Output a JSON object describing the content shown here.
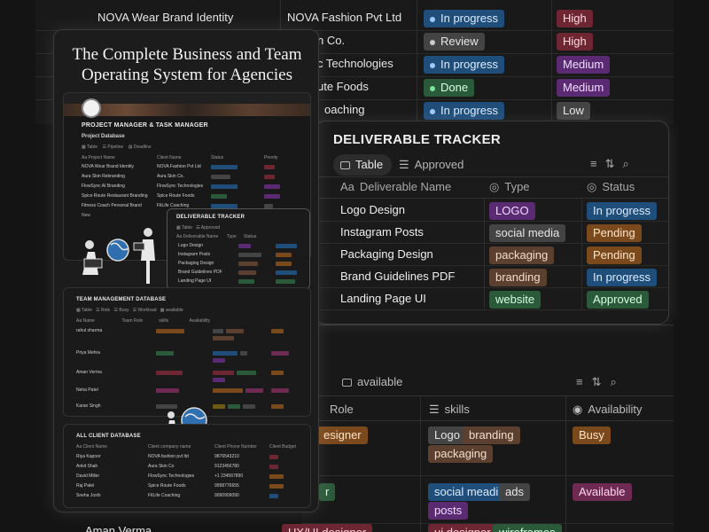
{
  "background_table": {
    "rows": [
      {
        "name": "NOVA Wear Brand Identity",
        "client": "NOVA Fashion Pvt Ltd",
        "status": "In progress",
        "priority": "High"
      },
      {
        "name": "",
        "client": "n Co.",
        "status": "Review",
        "priority": "High"
      },
      {
        "name": "",
        "client": "c Technologies",
        "status": "In progress",
        "priority": "Medium"
      },
      {
        "name": "",
        "client": "ute Foods",
        "status": "Done",
        "priority": "Medium"
      },
      {
        "name": "",
        "client": "oaching",
        "status": "In progress",
        "priority": "Low"
      }
    ]
  },
  "promo": {
    "title_line1": "The Complete Business and Team",
    "title_line2": "Operating System for Agencies",
    "project_header": "PROJECT MANAGER & TASK MANAGER",
    "project_db": "Project Database",
    "deliverable_mini_title": "DELIVERABLE TRACKER",
    "team_title": "TEAM MANAGEMENT DATABASE",
    "client_title": "ALL CLIENT DATABASE",
    "team_tabs": [
      "Table",
      "Role",
      "Busy",
      "Workload",
      "available"
    ],
    "project_rows": [
      {
        "name": "NOVA Wear Brand Identity",
        "client": "NOVA Fashion Pvt Ltd",
        "status": "In progress",
        "priority": "High"
      },
      {
        "name": "Aura Skin Rebranding",
        "client": "Aura Skin Co.",
        "status": "Review",
        "priority": "High"
      },
      {
        "name": "FlowSync AI Branding",
        "client": "FlowSync Technologies",
        "status": "In progress",
        "priority": "Medium"
      },
      {
        "name": "Spice Route Restaurant Branding",
        "client": "Spice Route Foods",
        "status": "Done",
        "priority": "Medium"
      },
      {
        "name": "Fitness Coach Personal Brand",
        "client": "FitLife Coaching",
        "status": "In progress",
        "priority": "Low"
      },
      {
        "name": "New",
        "client": "",
        "status": "",
        "priority": ""
      }
    ],
    "team_rows": [
      {
        "name": "rahul sharma",
        "role": "Brand designer"
      },
      {
        "name": "Priya Mehra",
        "role": "Designer"
      },
      {
        "name": "Aman Verma",
        "role": "UI/UX designer"
      },
      {
        "name": "Neha Patel",
        "role": "copywriter"
      },
      {
        "name": "Karan Singh",
        "role": "videoeditor"
      }
    ],
    "client_rows": [
      {
        "name": "Riya Kapoor",
        "company": "NOVA fashion pvt ltd",
        "phone": "9876543210",
        "budget": "high"
      },
      {
        "name": "Ankit Shah",
        "company": "Aura Skin Co",
        "phone": "9123456780",
        "budget": "high"
      },
      {
        "name": "David Miller",
        "company": "FlowSync Technologies",
        "phone": "+1 234567890",
        "budget": "medium"
      },
      {
        "name": "Raj Patel",
        "company": "Spice Route Foods",
        "phone": "9998776655",
        "budget": "medium"
      },
      {
        "name": "Sneha Joshi",
        "company": "FitLife Coaching",
        "phone": "9090909090",
        "budget": "low"
      }
    ]
  },
  "deliverable_tracker": {
    "title": "DELIVERABLE TRACKER",
    "tabs": [
      "Table",
      "Approved"
    ],
    "columns": [
      "Deliverable Name",
      "Type",
      "Status"
    ],
    "rows": [
      {
        "name": "Logo Design",
        "type": "LOGO",
        "status": "In progress"
      },
      {
        "name": "Instagram Posts",
        "type": "social media",
        "status": "Pending"
      },
      {
        "name": "Packaging Design",
        "type": "packaging",
        "status": "Pending"
      },
      {
        "name": "Brand Guidelines PDF",
        "type": "branding",
        "status": "In progress"
      },
      {
        "name": "Landing Page UI",
        "type": "website",
        "status": "Approved"
      }
    ]
  },
  "team_table": {
    "view_tab": "available",
    "columns": [
      "Role",
      "skills",
      "Availability"
    ],
    "rows": [
      {
        "role": "esigner",
        "skills": [
          "Logo",
          "branding",
          "packaging"
        ],
        "availability": "Busy"
      },
      {
        "role": "r",
        "skills": [
          "social meadi",
          "ads",
          "posts"
        ],
        "availability": "Available"
      },
      {
        "name": "Aman Verma",
        "role": "UX/UI designer",
        "skills": [
          "ui designer",
          "wireframes"
        ],
        "availability": ""
      }
    ]
  },
  "colors": {
    "background": "#141414",
    "panel": "#1b1b1b",
    "blue_tag": "#1f4e7a",
    "red_tag": "#6e2633",
    "green_tag": "#2b5a3a",
    "orange_tag": "#7a4a1d",
    "purple_tag": "#5a2b73"
  }
}
